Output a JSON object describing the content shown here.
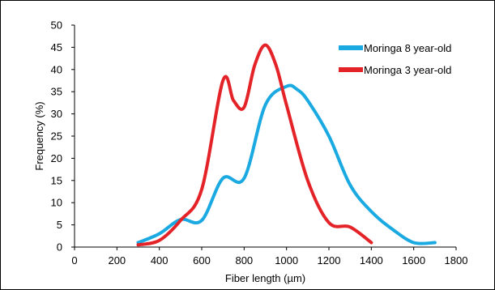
{
  "chart_data": {
    "type": "line",
    "title": "",
    "xlabel": "Fiber length (µm)",
    "ylabel": "Frequency (%)",
    "xlim": [
      0,
      1800
    ],
    "ylim": [
      0,
      50
    ],
    "xticks": [
      0,
      200,
      400,
      600,
      800,
      1000,
      1200,
      1400,
      1600,
      1800
    ],
    "yticks": [
      0,
      5,
      10,
      15,
      20,
      25,
      30,
      35,
      40,
      45,
      50
    ],
    "legend_position": "top-right",
    "grid": false,
    "series": [
      {
        "name": "Moringa 8 year-old",
        "color": "#1aa9e1",
        "x": [
          300,
          400,
          500,
          600,
          700,
          800,
          900,
          1000,
          1050,
          1100,
          1200,
          1300,
          1400,
          1500,
          1600,
          1700
        ],
        "y": [
          1,
          3,
          6.2,
          6,
          15.5,
          15.5,
          32,
          36.2,
          35.5,
          33,
          25,
          14,
          8,
          4,
          1,
          1
        ]
      },
      {
        "name": "Moringa 3 year-old",
        "color": "#e42328",
        "x": [
          300,
          400,
          500,
          600,
          700,
          750,
          800,
          850,
          900,
          950,
          1000,
          1100,
          1200,
          1300,
          1400
        ],
        "y": [
          0.5,
          1.5,
          6,
          13,
          37.5,
          33,
          31.5,
          41,
          45.5,
          41,
          32,
          15,
          5.5,
          4.5,
          1
        ]
      }
    ]
  }
}
